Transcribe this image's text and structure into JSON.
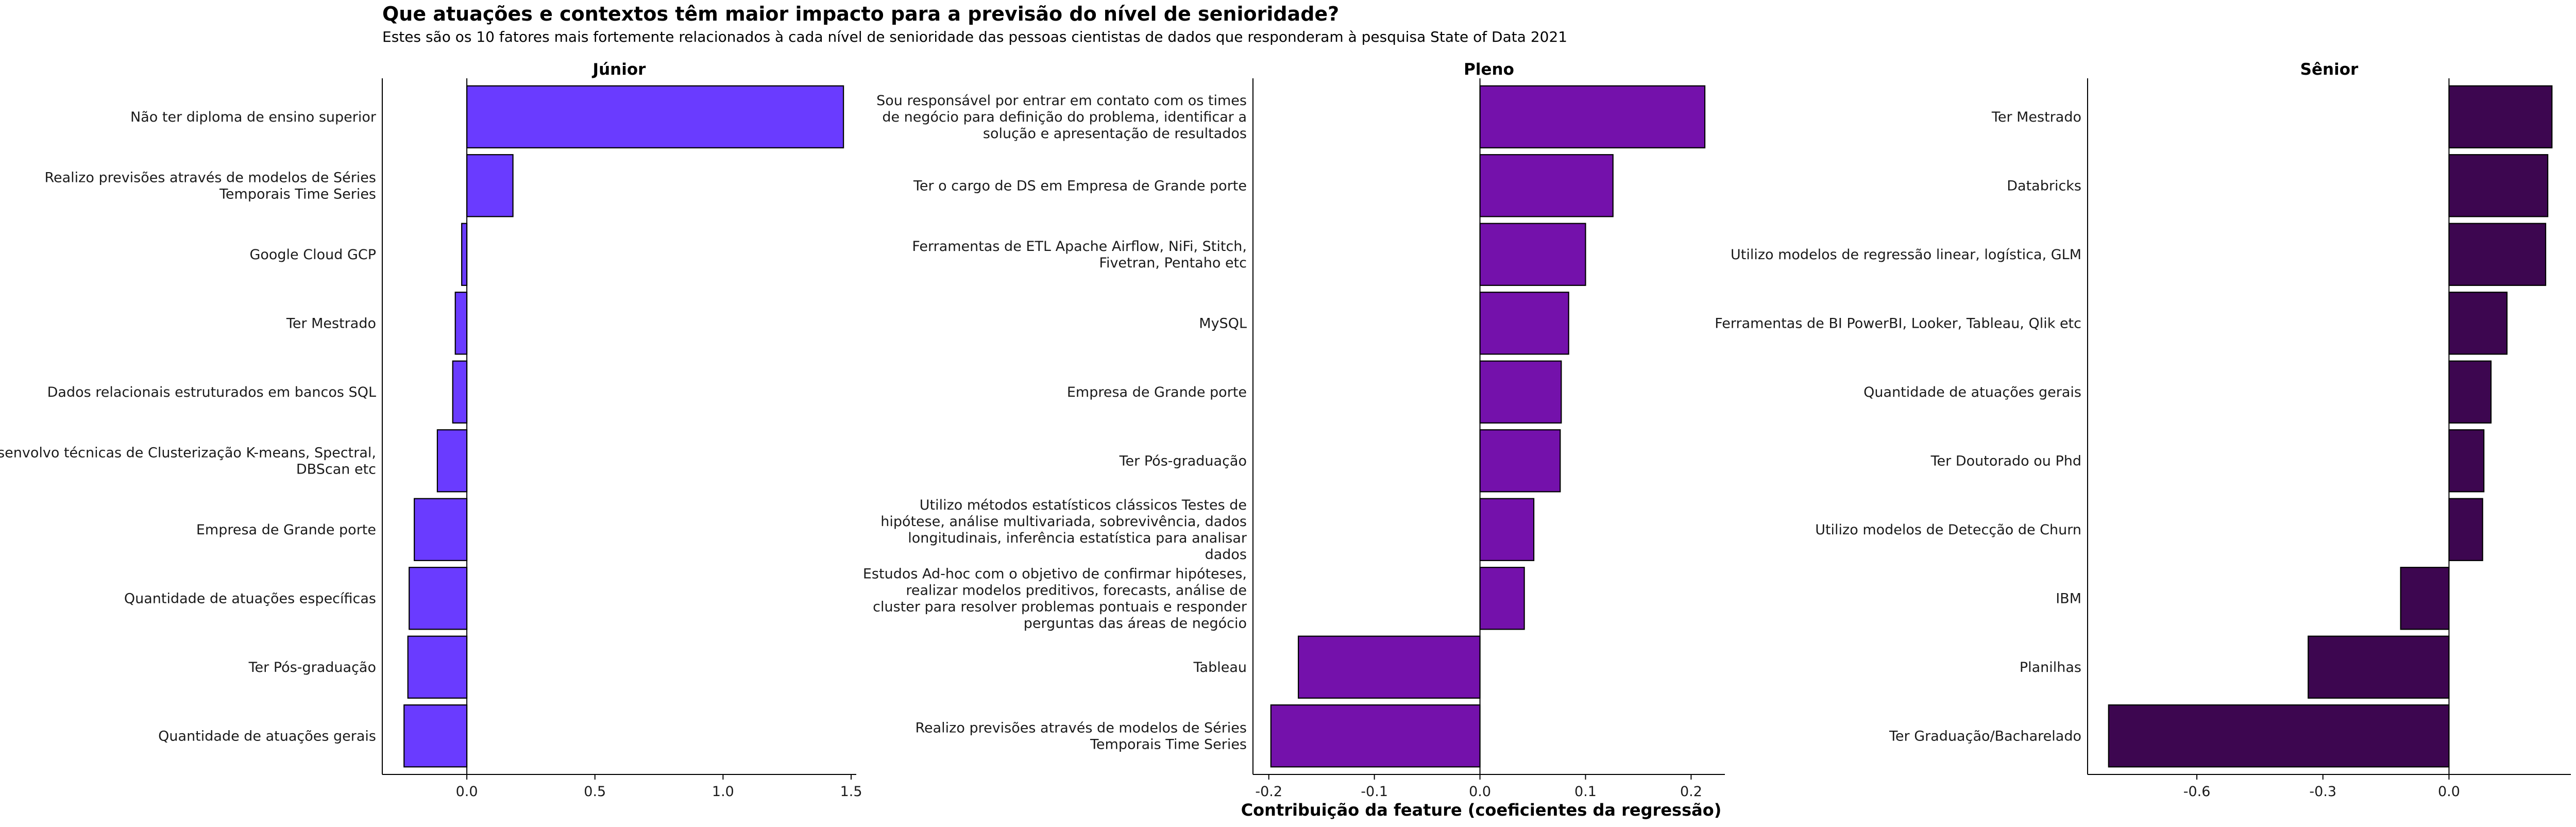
{
  "title": "Que atuações e contextos têm maior impacto para a previsão do nível de senioridade?",
  "subtitle": "Estes são os 10 fatores mais fortemente relacionados à cada nível de senioridade das pessoas cientistas de dados que responderam à pesquisa State of Data 2021",
  "xlabel": "Contribuição da feature (coeficientes da regressão)",
  "chart_data": [
    {
      "type": "bar",
      "orientation": "horizontal",
      "facet": "Júnior",
      "color": "#6a3bff",
      "categories": [
        "Não ter diploma de ensino superior",
        "Realizo previsões através de modelos de Séries\nTemporais Time Series",
        "Google Cloud GCP",
        "Ter Mestrado",
        "Dados relacionais estruturados em bancos SQL",
        "Desenvolvo técnicas de Clusterização K-means, Spectral,\nDBScan etc",
        "Empresa de Grande porte",
        "Quantidade de atuações específicas",
        "Ter Pós-graduação",
        "Quantidade de atuações gerais"
      ],
      "values": [
        1.47,
        0.18,
        -0.02,
        -0.045,
        -0.055,
        -0.115,
        -0.205,
        -0.225,
        -0.23,
        -0.245
      ],
      "xlim": [
        -0.33,
        1.52
      ],
      "xticks": [
        0.0,
        0.5,
        1.0,
        1.5
      ],
      "xtick_labels": [
        "0.0",
        "0.5",
        "1.0",
        "1.5"
      ]
    },
    {
      "type": "bar",
      "orientation": "horizontal",
      "facet": "Pleno",
      "color": "#7411ab",
      "categories": [
        "Sou responsável por entrar em contato com os times\nde negócio para definição do problema, identificar a\nsolução e apresentação de resultados",
        "Ter o cargo de DS em Empresa de Grande porte",
        "Ferramentas de ETL Apache Airflow, NiFi, Stitch,\nFivetran, Pentaho etc",
        "MySQL",
        "Empresa de Grande porte",
        "Ter Pós-graduação",
        "Utilizo métodos estatísticos clássicos Testes de\nhipótese, análise multivariada, sobrevivência, dados\nlongitudinais, inferência estatística para analisar\ndados",
        "Estudos Ad-hoc com o objetivo de confirmar hipóteses,\nrealizar modelos preditivos, forecasts, análise de\ncluster para resolver problemas pontuais e responder\nperguntas das áreas de negócio",
        "Tableau",
        "Realizo previsões através de modelos de Séries\nTemporais Time Series"
      ],
      "values": [
        0.213,
        0.126,
        0.1,
        0.084,
        0.077,
        0.076,
        0.051,
        0.042,
        -0.172,
        -0.198
      ],
      "xlim": [
        -0.215,
        0.232
      ],
      "xticks": [
        -0.2,
        -0.1,
        0.0,
        0.1,
        0.2
      ],
      "xtick_labels": [
        "-0.2",
        "-0.1",
        "0.0",
        "0.1",
        "0.2"
      ]
    },
    {
      "type": "bar",
      "orientation": "horizontal",
      "facet": "Sênior",
      "color": "#3d0650",
      "categories": [
        "Ter Mestrado",
        "Databricks",
        "Utilizo modelos de regressão linear, logística, GLM",
        "Ferramentas de BI PowerBI, Looker, Tableau, Qlik etc",
        "Quantidade de atuações gerais",
        "Ter Doutorado ou Phd",
        "Utilizo modelos de Detecção de Churn",
        "IBM",
        "Planilhas",
        "Ter Graduação/Bacharelado"
      ],
      "values": [
        0.245,
        0.235,
        0.23,
        0.138,
        0.1,
        0.083,
        0.08,
        -0.115,
        -0.335,
        -0.81
      ],
      "xlim": [
        -0.86,
        0.29
      ],
      "xticks": [
        -0.6,
        -0.3,
        0.0
      ],
      "xtick_labels": [
        "-0.6",
        "-0.3",
        "0.0"
      ]
    }
  ]
}
